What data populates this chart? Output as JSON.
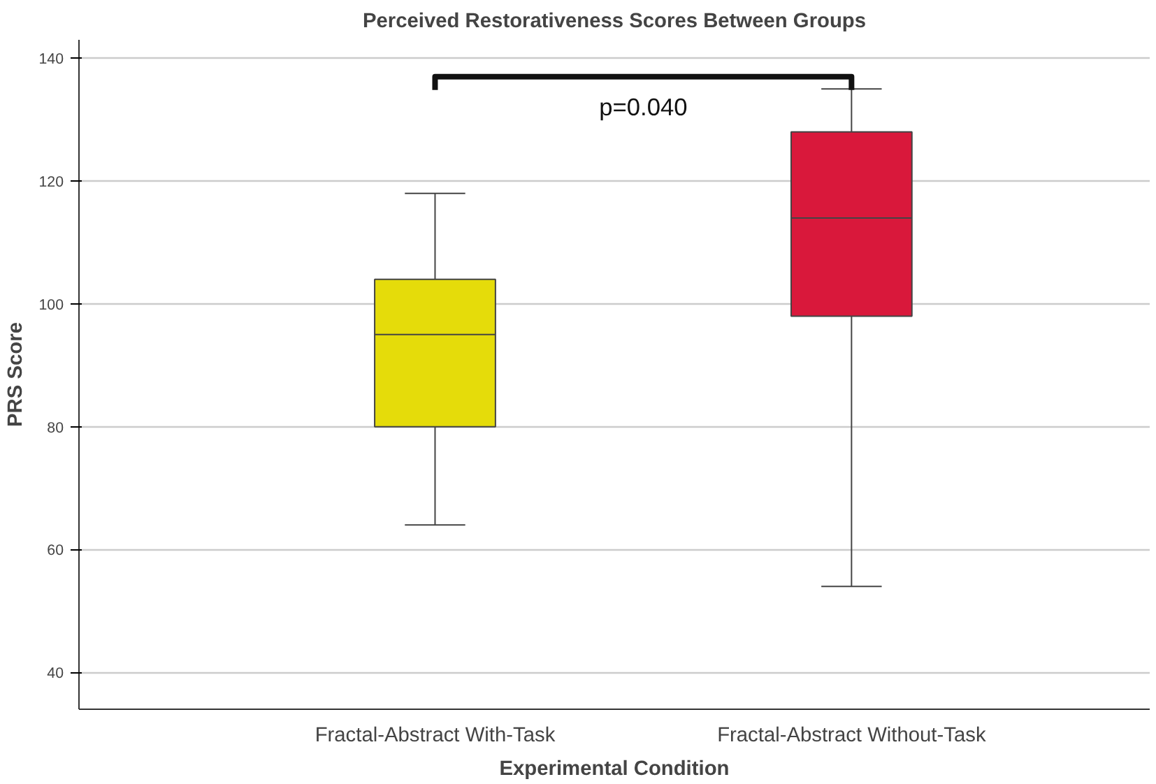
{
  "chart_data": {
    "type": "box",
    "title": "Perceived Restorativeness Scores Between Groups",
    "xlabel": "Experimental Condition",
    "ylabel": "PRS Score",
    "categories": [
      "Fractal-Abstract With-Task",
      "Fractal-Abstract Without-Task"
    ],
    "boxes": [
      {
        "low": 64,
        "q1": 80,
        "median": 95,
        "q3": 104,
        "high": 118
      },
      {
        "low": 54,
        "q1": 98,
        "median": 114,
        "q3": 128,
        "high": 135
      }
    ],
    "colors": [
      "#e5dc0a",
      "#d9183b"
    ],
    "ylim": [
      34,
      143
    ],
    "yticks": [
      40,
      60,
      80,
      100,
      120,
      140
    ],
    "grid": "y",
    "annotations": [
      "p=0.040"
    ]
  }
}
